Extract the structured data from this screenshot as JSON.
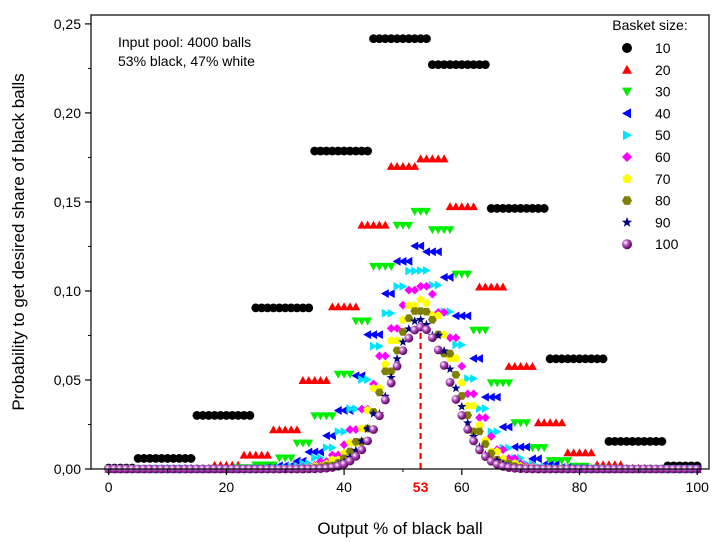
{
  "chart_data": {
    "type": "scatter",
    "xlabel": "Output % of black ball",
    "ylabel": "Probability to get desired share of black balls",
    "xlim": [
      -3,
      102
    ],
    "ylim": [
      0,
      0.255
    ],
    "xticks": [
      0,
      20,
      40,
      60,
      80,
      100
    ],
    "xtick_labels": [
      "0",
      "20",
      "40",
      "60",
      "80",
      "100"
    ],
    "yticks": [
      0,
      0.05,
      0.1,
      0.15,
      0.2,
      0.25
    ],
    "ytick_labels": [
      "0,00",
      "0,05",
      "0,10",
      "0,15",
      "0,20",
      "0,25"
    ],
    "annotation_lines": [
      "Input pool: 4000 balls",
      "53% black, 47% white"
    ],
    "marker_line": {
      "x": 53,
      "label": "53",
      "color": "#ff0000"
    },
    "legend": {
      "title": "Basket size:",
      "position": "top-right"
    },
    "grid": false,
    "p_black": 0.53,
    "series": [
      {
        "name": "10",
        "n": 10,
        "color": "#000000",
        "marker": "circle"
      },
      {
        "name": "20",
        "n": 20,
        "color": "#ff0000",
        "marker": "triangle-up"
      },
      {
        "name": "30",
        "n": 30,
        "color": "#00ee00",
        "marker": "triangle-down"
      },
      {
        "name": "40",
        "n": 40,
        "color": "#0000ff",
        "marker": "triangle-left"
      },
      {
        "name": "50",
        "n": 50,
        "color": "#00e5ff",
        "marker": "triangle-right"
      },
      {
        "name": "60",
        "n": 60,
        "color": "#ff00ff",
        "marker": "diamond"
      },
      {
        "name": "70",
        "n": 70,
        "color": "#ffff00",
        "marker": "pentagon"
      },
      {
        "name": "80",
        "n": 80,
        "color": "#808000",
        "marker": "hexagon"
      },
      {
        "name": "90",
        "n": 90,
        "color": "#000080",
        "marker": "star"
      },
      {
        "name": "100",
        "n": 100,
        "color": "#800080",
        "marker": "sphere"
      }
    ]
  }
}
